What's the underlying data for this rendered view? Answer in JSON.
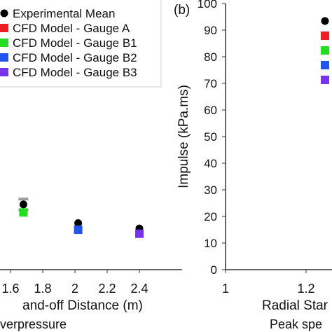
{
  "chart_data": [
    {
      "type": "scatter",
      "panel": "left",
      "xlabel": "and-off Distance (m)",
      "caption": "verpressure",
      "xlim": [
        1.5,
        2.5
      ],
      "ylim": [
        0,
        100
      ],
      "xticks": [
        "1.6",
        "1.8",
        "2",
        "2.2",
        "2.4"
      ],
      "grid": false,
      "legend_position": "top-left",
      "legend": [
        {
          "label": "Experimental Mean",
          "color": "#000000",
          "marker": "circle"
        },
        {
          "label": "CFD Model - Gauge A",
          "color": "#ee1c24",
          "marker": "square"
        },
        {
          "label": "CFD Model - Gauge B1",
          "color": "#22dd22",
          "marker": "square"
        },
        {
          "label": "CFD Model - Gauge B2",
          "color": "#2255ee",
          "marker": "square"
        },
        {
          "label": "CFD Model - Gauge B3",
          "color": "#7733ee",
          "marker": "square"
        }
      ],
      "series": [
        {
          "name": "Experimental Mean",
          "color": "#000000",
          "marker": "circle",
          "points": [
            {
              "x": 1.68,
              "y": 24.5
            },
            {
              "x": 2.02,
              "y": 17.5
            },
            {
              "x": 2.4,
              "y": 15.5
            }
          ]
        },
        {
          "name": "CFD Model - Gauge B1",
          "color": "#22dd22",
          "marker": "square",
          "points": [
            {
              "x": 1.68,
              "y": 21.5
            }
          ]
        },
        {
          "name": "CFD Model - Gauge B2",
          "color": "#2255ee",
          "marker": "square",
          "points": [
            {
              "x": 2.02,
              "y": 15
            }
          ]
        },
        {
          "name": "CFD Model - Gauge B3",
          "color": "#7733ee",
          "marker": "square",
          "points": [
            {
              "x": 2.4,
              "y": 13.5
            }
          ]
        }
      ],
      "error_bars": [
        {
          "x": 1.68,
          "low": 22.5,
          "high": 26.5,
          "color": "#999999"
        }
      ]
    },
    {
      "type": "scatter",
      "panel": "right",
      "panel_label": "(b)",
      "ylabel": "Impulse (kPa.ms)",
      "xlabel": "Radial Star",
      "caption": "Peak spe",
      "xlim": [
        1,
        1.7
      ],
      "ylim": [
        0,
        100
      ],
      "xticks": [
        "1",
        "1.2",
        "1.4",
        "1.6"
      ],
      "yticks": [
        "0",
        "10",
        "20",
        "30",
        "40",
        "50",
        "60",
        "70",
        "80",
        "90",
        "100"
      ],
      "grid": false,
      "legend_position": "top-right",
      "legend": [
        {
          "color": "#000000",
          "marker": "circle"
        },
        {
          "color": "#ee1c24",
          "marker": "square"
        },
        {
          "color": "#22dd22",
          "marker": "square"
        },
        {
          "color": "#2255ee",
          "marker": "square"
        },
        {
          "color": "#7733ee",
          "marker": "square"
        }
      ],
      "series": [
        {
          "color": "#ee1c24",
          "marker": "square",
          "points": [
            {
              "x": 1.35,
              "y": 77.5
            }
          ]
        },
        {
          "color": "#000000",
          "marker": "circle",
          "points": [
            {
              "x": 1.35,
              "y": 76
            }
          ]
        }
      ],
      "error_bars": [
        {
          "x": 1.35,
          "low": 58.5,
          "high": 95.5,
          "color": "#999999"
        }
      ]
    }
  ]
}
